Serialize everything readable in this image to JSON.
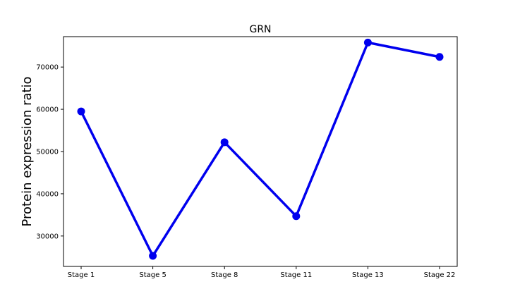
{
  "chart_data": {
    "type": "line",
    "title": "GRN",
    "xlabel": "",
    "ylabel": "Protein expression ratio",
    "categories": [
      "Stage 1",
      "Stage 5",
      "Stage 8",
      "Stage 11",
      "Stage 13",
      "Stage 22"
    ],
    "series": [
      {
        "values": [
          59500,
          25300,
          52200,
          34700,
          75800,
          72400
        ]
      }
    ],
    "yticks": [
      30000,
      40000,
      50000,
      60000,
      70000
    ],
    "ytick_labels": [
      "30000",
      "40000",
      "50000",
      "60000",
      "70000"
    ],
    "ylim": [
      22800,
      77200
    ],
    "grid": false,
    "legend": "none",
    "colors": {
      "line": "#0000ee",
      "axes": "#000000",
      "background": "#ffffff"
    }
  }
}
